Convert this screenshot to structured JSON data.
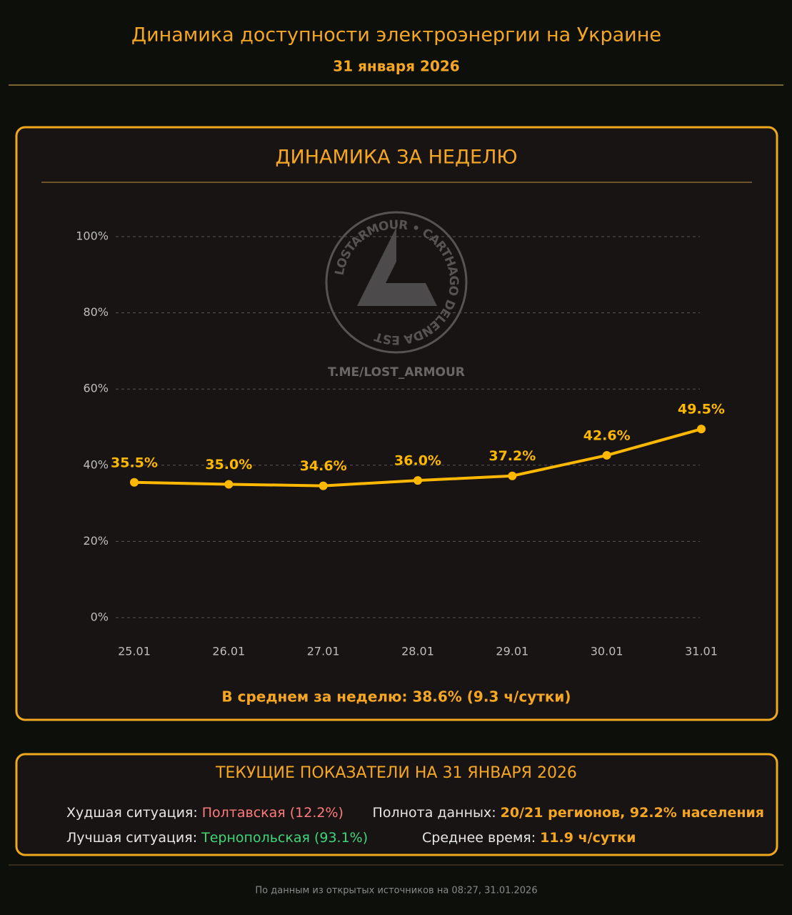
{
  "header": {
    "title": "Динамика доступности электроэнергии на Украине",
    "date": "31 января 2026"
  },
  "watermark": {
    "ring": "LOSTARMOUR • CARTHAGO DELENDA EST",
    "url": "T.ME/LOST_ARMOUR"
  },
  "chart_data": {
    "type": "line",
    "title": "ДИНАМИКА ЗА НЕДЕЛЮ",
    "categories": [
      "25.01",
      "26.01",
      "27.01",
      "28.01",
      "29.01",
      "30.01",
      "31.01"
    ],
    "values": [
      35.5,
      35.0,
      34.6,
      36.0,
      37.2,
      42.6,
      49.5
    ],
    "value_labels": [
      "35.5%",
      "35.0%",
      "34.6%",
      "36.0%",
      "37.2%",
      "42.6%",
      "49.5%"
    ],
    "color": "#ffb800",
    "ylim": [
      0,
      100
    ],
    "yticks": [
      {
        "value": 0,
        "label": "0%"
      },
      {
        "value": 20,
        "label": "20%"
      },
      {
        "value": 40,
        "label": "40%"
      },
      {
        "value": 60,
        "label": "60%"
      },
      {
        "value": 80,
        "label": "80%"
      },
      {
        "value": 100,
        "label": "100%"
      }
    ],
    "grid": true,
    "summary": "В среднем за неделю: 38.6% (9.3 ч/сутки)"
  },
  "current": {
    "title": "ТЕКУЩИЕ ПОКАЗАТЕЛИ НА 31 ЯНВАРЯ 2026",
    "worst_label": "Худшая ситуация:",
    "worst_value": "Полтавская (12.2%)",
    "best_label": "Лучшая ситуация:",
    "best_value": "Тернопольская (93.1%)",
    "coverage_label": "Полнота данных:",
    "coverage_value": "20/21 регионов, 92.2% населения",
    "avg_label": "Среднее время:",
    "avg_value": "11.9 ч/сутки"
  },
  "footer": "По данным из открытых источников на 08:27, 31.01.2026"
}
